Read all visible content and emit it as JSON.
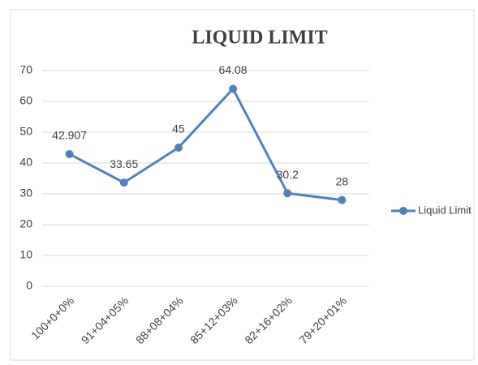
{
  "chart_data": {
    "type": "line",
    "title": "LIQUID LIMIT",
    "categories": [
      "100+0+0%",
      "91+04+05%",
      "88+08+04%",
      "85+12+03%",
      "82+16+02%",
      "79+20+01%"
    ],
    "series": [
      {
        "name": "Liquid Limit",
        "color": "#4f81bd",
        "values": [
          42.907,
          33.65,
          45,
          64.08,
          30.2,
          28
        ]
      }
    ],
    "ylim": [
      0,
      70
    ],
    "yticks": [
      0,
      10,
      20,
      30,
      40,
      50,
      60,
      70
    ],
    "grid": true,
    "legend": "right",
    "data_labels": true
  }
}
